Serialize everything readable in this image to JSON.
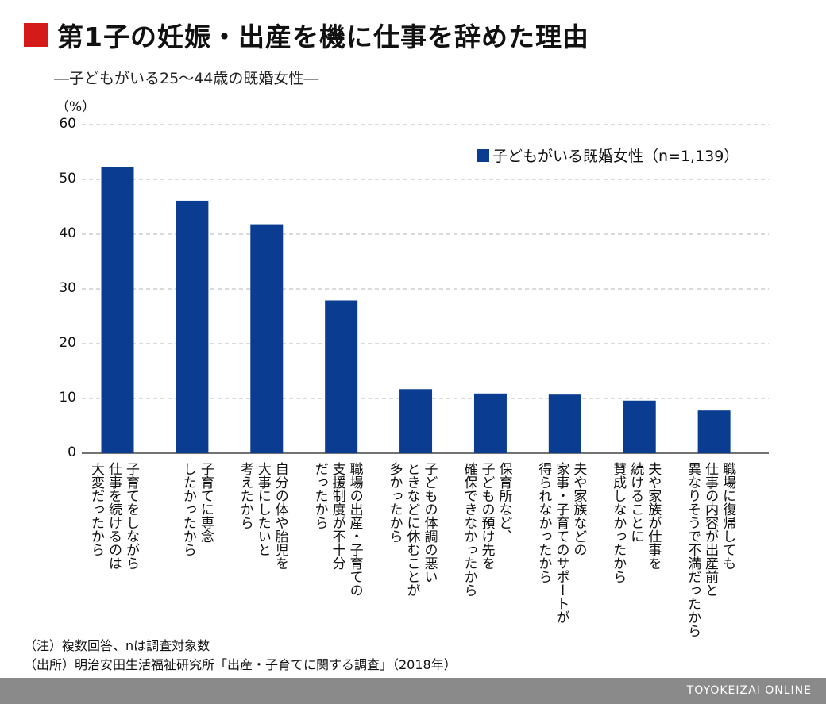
{
  "header": {
    "title": "第1子の妊娠・出産を機に仕事を辞めた理由",
    "subtitle": "―子どもがいる25〜44歳の既婚女性―"
  },
  "chart_data": {
    "type": "bar",
    "yunit": "（%）",
    "ylim": [
      0,
      60
    ],
    "yticks": [
      0,
      10,
      20,
      30,
      40,
      50,
      60
    ],
    "grid": true,
    "legend_position": "top-right",
    "color": "#0a3d91",
    "series": [
      {
        "name": "子どもがいる既婚女性（n=1,139）",
        "values": [
          52.3,
          46.1,
          41.8,
          27.9,
          11.7,
          10.9,
          10.7,
          9.6,
          7.8
        ]
      }
    ],
    "categories": [
      "子育てをしながら\n仕事を続けるのは\n大変だったから",
      "子育てに専念\nしたかったから",
      "自分の体や胎児を\n大事にしたいと\n考えたから",
      "職場の出産・子育ての\n支援制度が不十分\nだったから",
      "子どもの体調の悪い\nときなどに休むことが\n多かったから",
      "保育所など、\n子どもの預け先を\n確保できなかったから",
      "夫や家族などの\n家事・子育てのサポートが\n得られなかったから",
      "夫や家族が仕事を\n続けることに\n賛成しなかったから",
      "職場に復帰しても\n仕事の内容が出産前と\n異なりそうで不満だったから"
    ]
  },
  "notes": {
    "note1": "（注）複数回答、nは調査対象数",
    "source": "（出所）明治安田生活福祉研究所「出産・子育てに関する調査」（2018年）"
  },
  "footer": {
    "brand": "TOYOKEIZAI ONLINE"
  }
}
